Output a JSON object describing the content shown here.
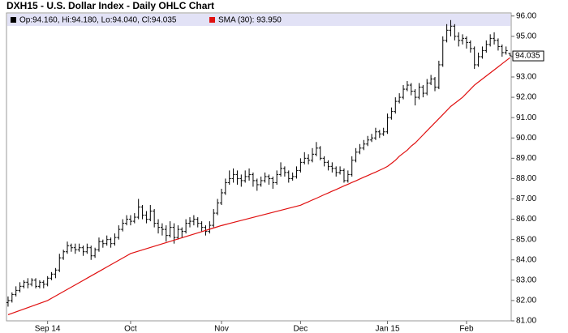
{
  "chart_data": {
    "type": "ohlc",
    "title": "DXH15 - U.S. Dollar Index - Daily OHLC Chart",
    "ohlc_legend": "Op:94.160, Hi:94.180, Lo:94.040, Cl:94.035",
    "color": "#000000",
    "ohlc": [
      [
        81.9,
        82.2,
        81.7,
        82.0
      ],
      [
        82.0,
        82.4,
        81.9,
        82.3
      ],
      [
        82.3,
        82.7,
        82.2,
        82.5
      ],
      [
        82.5,
        82.9,
        82.4,
        82.7
      ],
      [
        82.7,
        83.0,
        82.6,
        82.9
      ],
      [
        82.9,
        83.1,
        82.6,
        82.8
      ],
      [
        82.8,
        83.1,
        82.7,
        83.0
      ],
      [
        83.0,
        83.1,
        82.6,
        82.7
      ],
      [
        82.7,
        83.0,
        82.6,
        82.9
      ],
      [
        82.9,
        83.0,
        82.6,
        82.8
      ],
      [
        82.8,
        83.2,
        82.7,
        83.1
      ],
      [
        83.1,
        83.4,
        83.0,
        83.3
      ],
      [
        83.3,
        83.6,
        83.1,
        83.5
      ],
      [
        83.5,
        84.3,
        83.4,
        84.1
      ],
      [
        84.1,
        84.5,
        84.0,
        84.4
      ],
      [
        84.4,
        84.9,
        84.3,
        84.7
      ],
      [
        84.7,
        84.8,
        84.4,
        84.6
      ],
      [
        84.6,
        84.8,
        84.3,
        84.5
      ],
      [
        84.5,
        84.8,
        84.4,
        84.6
      ],
      [
        84.6,
        84.7,
        84.2,
        84.4
      ],
      [
        84.4,
        84.8,
        84.3,
        84.6
      ],
      [
        84.6,
        84.7,
        84.0,
        84.2
      ],
      [
        84.2,
        84.6,
        84.1,
        84.5
      ],
      [
        84.5,
        85.1,
        84.4,
        84.9
      ],
      [
        84.9,
        85.0,
        84.6,
        84.8
      ],
      [
        84.8,
        85.2,
        84.7,
        85.0
      ],
      [
        85.0,
        85.1,
        84.6,
        84.8
      ],
      [
        84.8,
        85.3,
        84.7,
        85.1
      ],
      [
        85.1,
        85.7,
        85.0,
        85.5
      ],
      [
        85.5,
        86.0,
        85.4,
        85.8
      ],
      [
        85.8,
        86.2,
        85.7,
        86.0
      ],
      [
        86.0,
        86.2,
        85.7,
        85.9
      ],
      [
        85.9,
        86.3,
        85.8,
        86.1
      ],
      [
        86.1,
        87.0,
        86.0,
        86.6
      ],
      [
        86.6,
        86.7,
        86.0,
        86.2
      ],
      [
        86.2,
        86.4,
        85.8,
        86.0
      ],
      [
        86.0,
        86.7,
        85.9,
        86.4
      ],
      [
        86.4,
        86.5,
        85.6,
        85.8
      ],
      [
        85.8,
        86.0,
        85.3,
        85.6
      ],
      [
        85.6,
        85.8,
        85.2,
        85.5
      ],
      [
        85.5,
        85.7,
        84.9,
        85.2
      ],
      [
        85.2,
        85.9,
        85.1,
        85.6
      ],
      [
        85.6,
        85.8,
        84.8,
        85.1
      ],
      [
        85.1,
        85.7,
        85.0,
        85.5
      ],
      [
        85.5,
        85.6,
        85.1,
        85.4
      ],
      [
        85.4,
        86.0,
        85.3,
        85.8
      ],
      [
        85.8,
        86.1,
        85.6,
        85.9
      ],
      [
        85.9,
        86.2,
        85.7,
        86.0
      ],
      [
        86.0,
        86.1,
        85.6,
        85.8
      ],
      [
        85.8,
        85.9,
        85.4,
        85.6
      ],
      [
        85.6,
        85.7,
        85.2,
        85.4
      ],
      [
        85.4,
        85.9,
        85.3,
        85.7
      ],
      [
        85.7,
        86.5,
        85.6,
        86.3
      ],
      [
        86.3,
        87.0,
        86.2,
        86.8
      ],
      [
        86.8,
        87.5,
        86.7,
        87.3
      ],
      [
        87.3,
        88.0,
        87.2,
        87.8
      ],
      [
        87.8,
        88.4,
        87.7,
        88.0
      ],
      [
        88.0,
        88.5,
        87.8,
        88.2
      ],
      [
        88.2,
        88.4,
        87.7,
        88.0
      ],
      [
        88.0,
        88.2,
        87.6,
        87.9
      ],
      [
        87.9,
        88.4,
        87.8,
        88.1
      ],
      [
        88.1,
        88.5,
        87.9,
        88.2
      ],
      [
        88.2,
        88.3,
        87.6,
        87.9
      ],
      [
        87.9,
        88.0,
        87.4,
        87.7
      ],
      [
        87.7,
        88.1,
        87.6,
        87.9
      ],
      [
        87.9,
        88.3,
        87.8,
        88.1
      ],
      [
        88.1,
        88.2,
        87.7,
        88.0
      ],
      [
        88.0,
        88.1,
        87.5,
        87.8
      ],
      [
        87.8,
        88.4,
        87.7,
        88.2
      ],
      [
        88.2,
        88.8,
        88.1,
        88.5
      ],
      [
        88.5,
        88.6,
        88.1,
        88.3
      ],
      [
        88.3,
        88.4,
        87.8,
        88.0
      ],
      [
        88.0,
        88.3,
        87.9,
        88.1
      ],
      [
        88.1,
        88.6,
        88.0,
        88.4
      ],
      [
        88.4,
        89.0,
        88.3,
        88.8
      ],
      [
        88.8,
        89.3,
        88.7,
        89.0
      ],
      [
        89.0,
        89.2,
        88.7,
        88.9
      ],
      [
        88.9,
        89.5,
        88.8,
        89.2
      ],
      [
        89.2,
        89.8,
        89.1,
        89.5
      ],
      [
        89.5,
        89.6,
        88.9,
        89.0
      ],
      [
        89.0,
        89.1,
        88.6,
        88.8
      ],
      [
        88.8,
        88.9,
        88.4,
        88.6
      ],
      [
        88.6,
        88.8,
        88.3,
        88.5
      ],
      [
        88.5,
        88.6,
        88.1,
        88.3
      ],
      [
        88.3,
        88.6,
        88.2,
        88.4
      ],
      [
        88.4,
        88.5,
        87.8,
        87.9
      ],
      [
        87.9,
        88.4,
        87.8,
        88.2
      ],
      [
        88.2,
        89.1,
        88.1,
        88.9
      ],
      [
        88.9,
        89.5,
        88.8,
        89.3
      ],
      [
        89.3,
        89.7,
        89.2,
        89.5
      ],
      [
        89.5,
        89.9,
        89.4,
        89.7
      ],
      [
        89.7,
        90.1,
        89.6,
        89.9
      ],
      [
        89.9,
        90.2,
        89.8,
        90.0
      ],
      [
        90.0,
        90.5,
        89.9,
        90.3
      ],
      [
        90.3,
        90.4,
        90.0,
        90.2
      ],
      [
        90.2,
        90.5,
        90.1,
        90.3
      ],
      [
        90.3,
        91.2,
        90.2,
        91.0
      ],
      [
        91.0,
        91.5,
        90.9,
        91.3
      ],
      [
        91.3,
        92.0,
        91.2,
        91.8
      ],
      [
        91.8,
        92.2,
        91.7,
        92.0
      ],
      [
        92.0,
        92.6,
        91.9,
        92.4
      ],
      [
        92.4,
        92.8,
        92.3,
        92.6
      ],
      [
        92.6,
        92.7,
        92.1,
        92.3
      ],
      [
        92.3,
        92.4,
        91.6,
        92.0
      ],
      [
        92.0,
        92.7,
        91.9,
        92.5
      ],
      [
        92.5,
        92.6,
        92.0,
        92.2
      ],
      [
        92.2,
        92.9,
        92.1,
        92.7
      ],
      [
        92.7,
        93.1,
        92.6,
        92.9
      ],
      [
        92.9,
        93.0,
        92.3,
        92.5
      ],
      [
        92.5,
        93.8,
        92.4,
        93.6
      ],
      [
        93.6,
        95.0,
        93.5,
        94.8
      ],
      [
        94.8,
        95.6,
        94.7,
        95.3
      ],
      [
        95.3,
        95.8,
        95.0,
        95.5
      ],
      [
        95.5,
        95.6,
        94.8,
        95.0
      ],
      [
        95.0,
        95.2,
        94.5,
        94.8
      ],
      [
        94.8,
        95.1,
        94.6,
        94.9
      ],
      [
        94.9,
        95.0,
        94.4,
        94.7
      ],
      [
        94.7,
        94.8,
        94.2,
        94.4
      ],
      [
        94.4,
        94.5,
        93.4,
        93.6
      ],
      [
        93.6,
        94.2,
        93.5,
        94.0
      ],
      [
        94.0,
        94.5,
        93.9,
        94.3
      ],
      [
        94.3,
        94.8,
        94.2,
        94.6
      ],
      [
        94.6,
        95.1,
        94.5,
        94.9
      ],
      [
        94.9,
        95.2,
        94.6,
        94.8
      ],
      [
        94.8,
        94.9,
        94.3,
        94.5
      ],
      [
        94.5,
        94.6,
        94.0,
        94.2
      ],
      [
        94.2,
        94.5,
        94.1,
        94.3
      ],
      [
        94.16,
        94.18,
        94.04,
        94.035
      ]
    ],
    "sma": {
      "name": "SMA (30): 93.950",
      "color": "#e01010",
      "values": [
        81.3,
        81.37,
        81.44,
        81.51,
        81.58,
        81.65,
        81.72,
        81.79,
        81.86,
        81.93,
        82.0,
        82.11,
        82.22,
        82.33,
        82.44,
        82.55,
        82.66,
        82.77,
        82.88,
        82.99,
        83.1,
        83.21,
        83.32,
        83.43,
        83.54,
        83.65,
        83.76,
        83.87,
        83.98,
        84.09,
        84.2,
        84.31,
        84.37,
        84.43,
        84.49,
        84.55,
        84.61,
        84.67,
        84.73,
        84.79,
        84.85,
        84.91,
        84.97,
        85.03,
        85.09,
        85.15,
        85.21,
        85.27,
        85.33,
        85.39,
        85.45,
        85.51,
        85.57,
        85.63,
        85.69,
        85.74,
        85.79,
        85.84,
        85.89,
        85.94,
        85.99,
        86.04,
        86.09,
        86.14,
        86.19,
        86.24,
        86.29,
        86.34,
        86.39,
        86.44,
        86.49,
        86.54,
        86.59,
        86.64,
        86.69,
        86.78,
        86.86,
        86.95,
        87.03,
        87.12,
        87.21,
        87.29,
        87.38,
        87.46,
        87.55,
        87.64,
        87.72,
        87.81,
        87.89,
        87.98,
        88.07,
        88.15,
        88.24,
        88.32,
        88.41,
        88.5,
        88.6,
        88.75,
        88.9,
        89.1,
        89.25,
        89.4,
        89.6,
        89.75,
        89.95,
        90.15,
        90.35,
        90.55,
        90.75,
        90.95,
        91.15,
        91.35,
        91.55,
        91.7,
        91.85,
        92.0,
        92.2,
        92.4,
        92.6,
        92.75,
        92.9,
        93.05,
        93.2,
        93.35,
        93.5,
        93.65,
        93.8,
        93.95
      ]
    },
    "xlim": [
      -0.4,
      127.3
    ],
    "xticks": [
      {
        "value": 10,
        "label": "Sep 14"
      },
      {
        "value": 31,
        "label": "Oct"
      },
      {
        "value": 54,
        "label": "Nov"
      },
      {
        "value": 74,
        "label": "Dec"
      },
      {
        "value": 96,
        "label": "Jan 15"
      },
      {
        "value": 116,
        "label": "Feb"
      }
    ],
    "ylim": [
      81,
      96.15
    ],
    "yticks": [
      {
        "value": 81,
        "label": "81.00"
      },
      {
        "value": 82,
        "label": "82.00"
      },
      {
        "value": 83,
        "label": "83.00"
      },
      {
        "value": 84,
        "label": "84.00"
      },
      {
        "value": 85,
        "label": "85.00"
      },
      {
        "value": 86,
        "label": "86.00"
      },
      {
        "value": 87,
        "label": "87.00"
      },
      {
        "value": 88,
        "label": "88.00"
      },
      {
        "value": 89,
        "label": "89.00"
      },
      {
        "value": 90,
        "label": "90.00"
      },
      {
        "value": 91,
        "label": "91.00"
      },
      {
        "value": 92,
        "label": "92.00"
      },
      {
        "value": 93,
        "label": "93.00"
      },
      {
        "value": 94,
        "label": "94.00"
      },
      {
        "value": 95,
        "label": "95.00"
      },
      {
        "value": 96,
        "label": "96.00"
      }
    ]
  }
}
